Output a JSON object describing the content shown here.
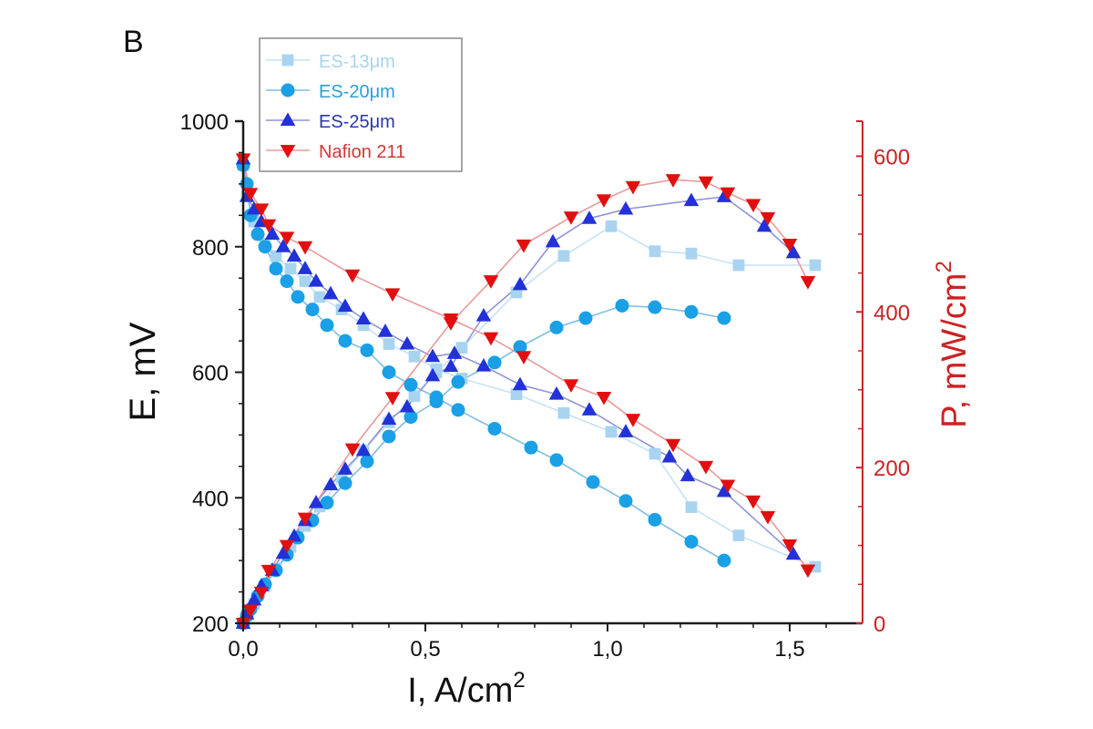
{
  "panel_label": "B",
  "chart_data": {
    "type": "line",
    "title": "",
    "panel_label": "B",
    "xlabel": "I, A/cm",
    "xlabel_sup": "2",
    "ylabel": "E, mV",
    "y2label": "P, mW/cm",
    "y2label_sup": "2",
    "xlim": [
      0.0,
      1.7
    ],
    "ylim": [
      200,
      1000
    ],
    "y2lim": [
      0,
      645
    ],
    "xticks": [
      0.0,
      0.5,
      1.0,
      1.5
    ],
    "xtick_labels": [
      "0,0",
      "0,5",
      "1,0",
      "1,5"
    ],
    "yticks": [
      200,
      400,
      600,
      800,
      1000
    ],
    "ytick_labels": [
      "200",
      "400",
      "600",
      "800",
      "1000"
    ],
    "y2ticks": [
      0,
      200,
      400,
      600
    ],
    "y2tick_labels": [
      "0",
      "200",
      "400",
      "600"
    ],
    "grid": false,
    "legend_position": "top-left",
    "colors": {
      "axis_left": "#1a1a1a",
      "axis_right": "#c8262b",
      "y2_text": "#cc2222"
    },
    "series": [
      {
        "name": "ES-13μm",
        "marker": "square",
        "color": "#a8d4f2",
        "line_color": "#c6e2f5",
        "legend_color": "#a9d3ee",
        "E": {
          "x": [
            0.0,
            0.01,
            0.03,
            0.06,
            0.09,
            0.13,
            0.17,
            0.21,
            0.27,
            0.33,
            0.4,
            0.47,
            0.53,
            0.6,
            0.75,
            0.88,
            1.01,
            1.13,
            1.23,
            1.36,
            1.57
          ],
          "y": [
            930,
            880,
            840,
            805,
            785,
            765,
            745,
            720,
            700,
            675,
            645,
            625,
            605,
            590,
            565,
            535,
            505,
            470,
            385,
            340,
            290
          ]
        },
        "P": {
          "x": [
            0.0,
            0.01,
            0.03,
            0.06,
            0.09,
            0.13,
            0.17,
            0.21,
            0.27,
            0.33,
            0.4,
            0.47,
            0.53,
            0.6,
            0.75,
            0.88,
            1.01,
            1.13,
            1.23,
            1.36,
            1.57
          ],
          "y": [
            0,
            10,
            25,
            48,
            70,
            98,
            125,
            150,
            188,
            222,
            258,
            292,
            322,
            354,
            425,
            472,
            510,
            478,
            475,
            460,
            460
          ]
        }
      },
      {
        "name": "ES-20μm",
        "marker": "circle",
        "color": "#1aa0e6",
        "line_color": "#7fbde0",
        "legend_color": "#2a9fd6",
        "E": {
          "x": [
            0.0,
            0.01,
            0.02,
            0.04,
            0.06,
            0.09,
            0.12,
            0.15,
            0.19,
            0.23,
            0.28,
            0.34,
            0.4,
            0.46,
            0.53,
            0.59,
            0.69,
            0.79,
            0.86,
            0.96,
            1.05,
            1.13,
            1.23,
            1.32
          ],
          "y": [
            930,
            900,
            850,
            820,
            800,
            765,
            745,
            720,
            700,
            675,
            650,
            635,
            600,
            580,
            560,
            540,
            510,
            480,
            460,
            425,
            395,
            365,
            330,
            300
          ]
        },
        "P": {
          "x": [
            0.0,
            0.01,
            0.02,
            0.04,
            0.06,
            0.09,
            0.12,
            0.15,
            0.19,
            0.23,
            0.28,
            0.34,
            0.4,
            0.46,
            0.53,
            0.59,
            0.69,
            0.76,
            0.86,
            0.94,
            1.04,
            1.13,
            1.23,
            1.32
          ],
          "y": [
            0,
            10,
            18,
            35,
            50,
            68,
            88,
            110,
            132,
            155,
            180,
            208,
            240,
            265,
            285,
            310,
            335,
            355,
            380,
            392,
            408,
            406,
            400,
            392
          ]
        }
      },
      {
        "name": "ES-25μm",
        "marker": "triangle-up",
        "color": "#2232d8",
        "line_color": "#8e94d8",
        "legend_color": "#2b36a8",
        "E": {
          "x": [
            0.0,
            0.01,
            0.03,
            0.05,
            0.08,
            0.11,
            0.14,
            0.17,
            0.2,
            0.24,
            0.28,
            0.33,
            0.39,
            0.45,
            0.52,
            0.58,
            0.66,
            0.76,
            0.86,
            0.95,
            1.05,
            1.17,
            1.22,
            1.32,
            1.51
          ],
          "y": [
            940,
            880,
            860,
            840,
            820,
            800,
            785,
            765,
            745,
            725,
            705,
            685,
            665,
            645,
            625,
            630,
            610,
            580,
            565,
            540,
            505,
            465,
            435,
            410,
            310
          ]
        },
        "P": {
          "x": [
            0.0,
            0.01,
            0.03,
            0.05,
            0.08,
            0.11,
            0.14,
            0.17,
            0.2,
            0.24,
            0.28,
            0.33,
            0.4,
            0.45,
            0.52,
            0.57,
            0.66,
            0.76,
            0.85,
            0.95,
            1.05,
            1.23,
            1.32,
            1.43,
            1.51
          ],
          "y": [
            0,
            12,
            30,
            48,
            68,
            90,
            112,
            132,
            155,
            178,
            198,
            222,
            262,
            278,
            318,
            330,
            395,
            435,
            490,
            520,
            532,
            543,
            548,
            510,
            476
          ]
        }
      },
      {
        "name": "Nafion 211",
        "marker": "triangle-down",
        "color": "#e01010",
        "line_color": "#e89a9a",
        "legend_color": "#d03838",
        "E": {
          "x": [
            0.0,
            0.02,
            0.05,
            0.07,
            0.12,
            0.17,
            0.3,
            0.41,
            0.57,
            0.68,
            0.77,
            0.9,
            0.99,
            1.07,
            1.18,
            1.27,
            1.33,
            1.4,
            1.44,
            1.5,
            1.55
          ],
          "y": [
            940,
            885,
            860,
            835,
            815,
            800,
            755,
            725,
            685,
            655,
            625,
            580,
            560,
            525,
            485,
            450,
            420,
            395,
            370,
            325,
            285
          ]
        },
        "P": {
          "x": [
            0.0,
            0.02,
            0.05,
            0.07,
            0.12,
            0.17,
            0.3,
            0.41,
            0.57,
            0.68,
            0.77,
            0.9,
            0.99,
            1.07,
            1.18,
            1.27,
            1.33,
            1.4,
            1.44,
            1.5,
            1.55
          ],
          "y": [
            0,
            17,
            40,
            68,
            100,
            135,
            224,
            290,
            386,
            440,
            486,
            522,
            544,
            561,
            570,
            567,
            553,
            538,
            521,
            487,
            439
          ]
        }
      }
    ]
  }
}
